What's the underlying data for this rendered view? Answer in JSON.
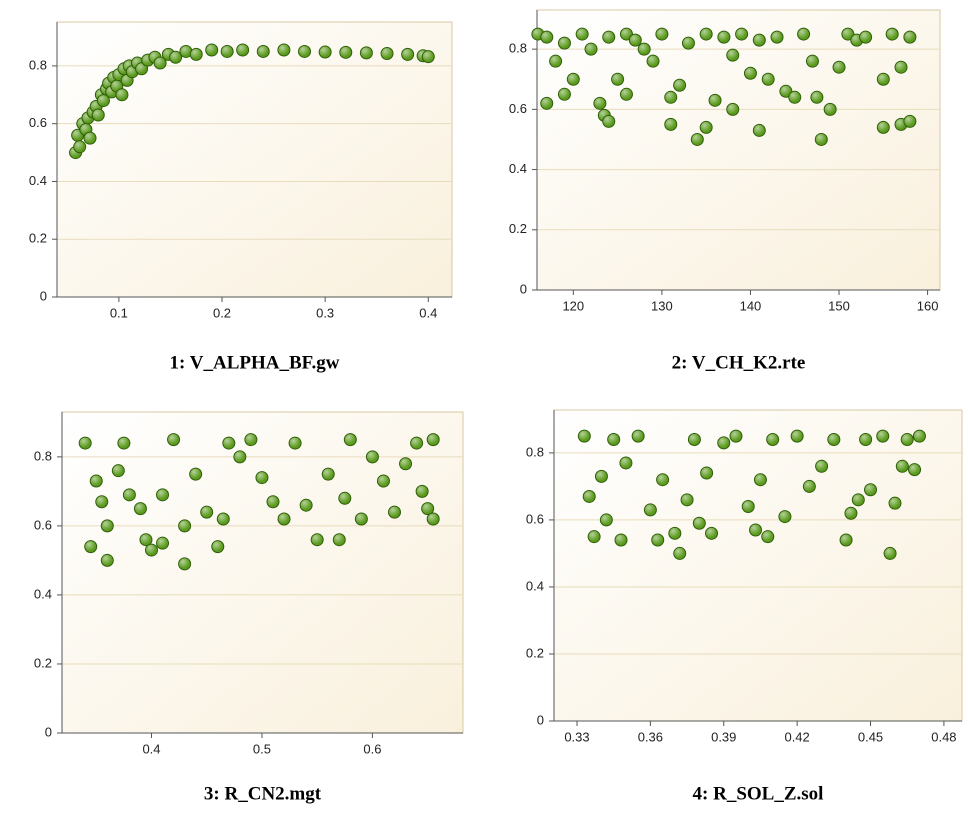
{
  "chart_data": [
    {
      "type": "scatter",
      "title": "1: V_ALPHA_BF.gw",
      "color": "#5a9a1c",
      "grid": true,
      "x": [
        0.058,
        0.06,
        0.062,
        0.065,
        0.068,
        0.07,
        0.072,
        0.075,
        0.078,
        0.08,
        0.083,
        0.085,
        0.088,
        0.09,
        0.093,
        0.095,
        0.098,
        0.1,
        0.103,
        0.105,
        0.108,
        0.11,
        0.113,
        0.118,
        0.122,
        0.128,
        0.135,
        0.14,
        0.148,
        0.155,
        0.165,
        0.175,
        0.19,
        0.205,
        0.22,
        0.24,
        0.26,
        0.28,
        0.3,
        0.32,
        0.34,
        0.36,
        0.38,
        0.395,
        0.4
      ],
      "values": [
        0.5,
        0.56,
        0.52,
        0.6,
        0.58,
        0.62,
        0.55,
        0.64,
        0.66,
        0.63,
        0.7,
        0.68,
        0.72,
        0.74,
        0.71,
        0.76,
        0.73,
        0.77,
        0.7,
        0.79,
        0.75,
        0.8,
        0.78,
        0.81,
        0.79,
        0.82,
        0.83,
        0.81,
        0.84,
        0.83,
        0.85,
        0.84,
        0.855,
        0.85,
        0.855,
        0.85,
        0.855,
        0.85,
        0.848,
        0.847,
        0.845,
        0.843,
        0.84,
        0.835,
        0.832
      ],
      "xlim": [
        0.04,
        0.423
      ],
      "ylim": [
        0,
        0.952
      ],
      "xticks": [
        0.1,
        0.2,
        0.3,
        0.4
      ],
      "yticks": [
        0,
        0.2,
        0.4,
        0.6,
        0.8
      ]
    },
    {
      "type": "scatter",
      "title": "2: V_CH_K2.rte",
      "color": "#5a9a1c",
      "grid": true,
      "x": [
        116,
        117,
        117,
        118,
        119,
        119,
        120,
        121,
        122,
        123,
        123.5,
        124,
        124,
        125,
        126,
        126,
        127,
        128,
        129,
        130,
        131,
        131,
        132,
        133,
        134,
        135,
        135,
        136,
        137,
        138,
        138,
        139,
        140,
        141,
        141,
        142,
        143,
        144,
        145,
        146,
        147,
        147.5,
        148,
        149,
        150,
        151,
        152,
        153,
        155,
        155,
        156,
        157,
        157,
        158,
        158
      ],
      "values": [
        0.85,
        0.84,
        0.62,
        0.76,
        0.65,
        0.82,
        0.7,
        0.85,
        0.8,
        0.62,
        0.58,
        0.56,
        0.84,
        0.7,
        0.65,
        0.85,
        0.83,
        0.8,
        0.76,
        0.85,
        0.64,
        0.55,
        0.68,
        0.82,
        0.5,
        0.54,
        0.85,
        0.63,
        0.84,
        0.6,
        0.78,
        0.85,
        0.72,
        0.53,
        0.83,
        0.7,
        0.84,
        0.66,
        0.64,
        0.85,
        0.76,
        0.64,
        0.5,
        0.6,
        0.74,
        0.85,
        0.83,
        0.84,
        0.54,
        0.7,
        0.85,
        0.55,
        0.74,
        0.56,
        0.84
      ],
      "xlim": [
        115.9,
        161.4
      ],
      "ylim": [
        0,
        0.93
      ],
      "xticks": [
        120,
        130,
        140,
        150,
        160
      ],
      "yticks": [
        0,
        0.2,
        0.4,
        0.6,
        0.8
      ]
    },
    {
      "type": "scatter",
      "title": "3: R_CN2.mgt",
      "color": "#5a9a1c",
      "grid": true,
      "x": [
        0.34,
        0.345,
        0.35,
        0.355,
        0.36,
        0.36,
        0.37,
        0.375,
        0.38,
        0.39,
        0.395,
        0.4,
        0.41,
        0.41,
        0.42,
        0.43,
        0.43,
        0.44,
        0.45,
        0.46,
        0.465,
        0.47,
        0.48,
        0.49,
        0.5,
        0.51,
        0.52,
        0.53,
        0.54,
        0.55,
        0.56,
        0.57,
        0.575,
        0.58,
        0.59,
        0.6,
        0.61,
        0.62,
        0.63,
        0.64,
        0.645,
        0.65,
        0.655,
        0.655
      ],
      "values": [
        0.84,
        0.54,
        0.73,
        0.67,
        0.5,
        0.6,
        0.76,
        0.84,
        0.69,
        0.65,
        0.56,
        0.53,
        0.69,
        0.55,
        0.85,
        0.49,
        0.6,
        0.75,
        0.64,
        0.54,
        0.62,
        0.84,
        0.8,
        0.85,
        0.74,
        0.67,
        0.62,
        0.84,
        0.66,
        0.56,
        0.75,
        0.56,
        0.68,
        0.85,
        0.62,
        0.8,
        0.73,
        0.64,
        0.78,
        0.84,
        0.7,
        0.65,
        0.62,
        0.85
      ],
      "xlim": [
        0.319,
        0.682
      ],
      "ylim": [
        0,
        0.93
      ],
      "xticks": [
        0.4,
        0.5,
        0.6
      ],
      "yticks": [
        0,
        0.2,
        0.4,
        0.6,
        0.8
      ]
    },
    {
      "type": "scatter",
      "title": "4: R_SOL_Z.sol",
      "color": "#5a9a1c",
      "grid": true,
      "x": [
        0.333,
        0.335,
        0.337,
        0.34,
        0.342,
        0.345,
        0.348,
        0.35,
        0.355,
        0.36,
        0.363,
        0.365,
        0.37,
        0.372,
        0.375,
        0.378,
        0.38,
        0.383,
        0.385,
        0.39,
        0.395,
        0.4,
        0.403,
        0.405,
        0.408,
        0.41,
        0.415,
        0.42,
        0.425,
        0.43,
        0.435,
        0.44,
        0.442,
        0.445,
        0.448,
        0.45,
        0.455,
        0.458,
        0.46,
        0.463,
        0.465,
        0.468,
        0.47
      ],
      "values": [
        0.85,
        0.67,
        0.55,
        0.73,
        0.6,
        0.84,
        0.54,
        0.77,
        0.85,
        0.63,
        0.54,
        0.72,
        0.56,
        0.5,
        0.66,
        0.84,
        0.59,
        0.74,
        0.56,
        0.83,
        0.85,
        0.64,
        0.57,
        0.72,
        0.55,
        0.84,
        0.61,
        0.85,
        0.7,
        0.76,
        0.84,
        0.54,
        0.62,
        0.66,
        0.84,
        0.69,
        0.85,
        0.5,
        0.65,
        0.76,
        0.84,
        0.75,
        0.85
      ],
      "xlim": [
        0.3206,
        0.4874
      ],
      "ylim": [
        0,
        0.928
      ],
      "xticks": [
        0.33,
        0.36,
        0.39,
        0.42,
        0.45,
        0.48
      ],
      "yticks": [
        0,
        0.2,
        0.4,
        0.6,
        0.8
      ]
    }
  ]
}
